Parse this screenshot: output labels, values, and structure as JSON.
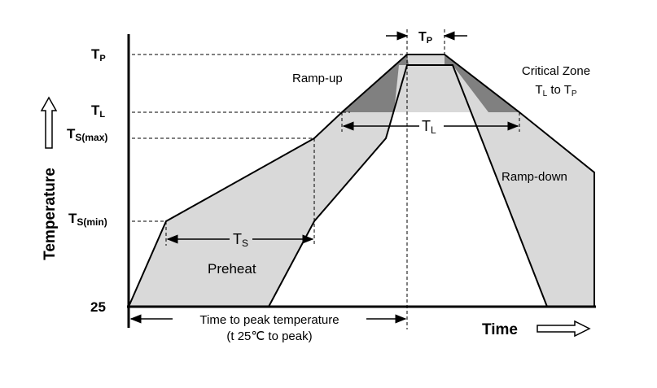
{
  "y_axis": {
    "label": "Temperature",
    "ticks": {
      "tp": {
        "main": "T",
        "sub": "P"
      },
      "tl": {
        "main": "T",
        "sub": "L"
      },
      "ts_max": {
        "main": "T",
        "sub": "S(max)"
      },
      "ts_min": {
        "main": "T",
        "sub": "S(min)"
      },
      "t25": "25"
    }
  },
  "x_axis": {
    "label": "Time"
  },
  "regions": {
    "ramp_up": "Ramp-up",
    "ramp_down": "Ramp-down",
    "preheat": "Preheat",
    "critical_zone_title": "Critical Zone",
    "critical_zone_range": {
      "t1": "T",
      "s1": "L",
      "mid": " to ",
      "t2": "T",
      "s2": "P"
    }
  },
  "dimensions": {
    "tp_width": {
      "main": "T",
      "sub": "P"
    },
    "tl_width": {
      "main": "T",
      "sub": "L"
    },
    "ts_width": {
      "main": "T",
      "sub": "S"
    },
    "time_to_peak_line1": "Time to peak temperature",
    "time_to_peak_line2": "(t 25℃ to peak)"
  },
  "colors": {
    "band_fill": "#d9d9d9",
    "critical_fill": "#808080",
    "line": "#000000"
  }
}
